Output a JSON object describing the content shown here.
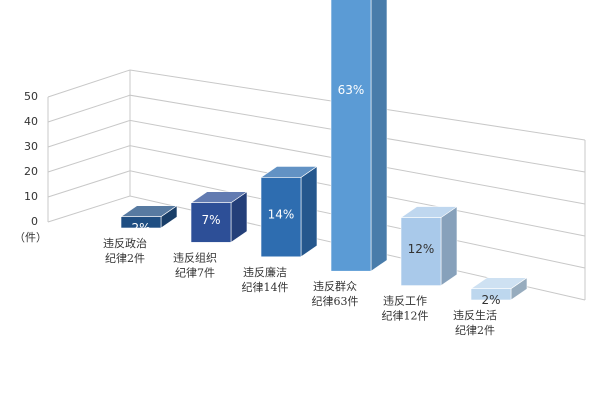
{
  "chart_data": {
    "type": "bar3d",
    "ylabel": "（件）",
    "categories": [
      [
        "违反政治",
        "纪律2件"
      ],
      [
        "违反组织",
        "纪律7件"
      ],
      [
        "违反廉洁",
        "纪律14件"
      ],
      [
        "违反群众",
        "纪律63件"
      ],
      [
        "违反工作",
        "纪律12件"
      ],
      [
        "违反生活",
        "纪律2件"
      ]
    ],
    "values": [
      2,
      7,
      14,
      63,
      12,
      2
    ],
    "value_labels": [
      "2%",
      "7%",
      "14%",
      "63%",
      "12%",
      "2%"
    ],
    "colors": [
      "#1f4e82",
      "#2d4f97",
      "#2e6db0",
      "#5b9bd5",
      "#a9c9ea",
      "#bdd7ee"
    ],
    "ylim": [
      0,
      50
    ],
    "yticks": [
      0,
      10,
      20,
      30,
      40,
      50
    ],
    "grid": true
  }
}
